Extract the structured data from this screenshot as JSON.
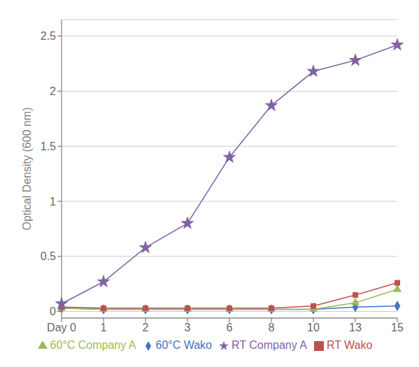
{
  "chart_data": {
    "type": "line",
    "categories": [
      "Day 0",
      "1",
      "2",
      "3",
      "6",
      "8",
      "10",
      "13",
      "15"
    ],
    "series": [
      {
        "name": "60°C Wako",
        "color": "#4472C4",
        "marker": "diamond",
        "values": [
          0.03,
          0.02,
          0.02,
          0.02,
          0.02,
          0.02,
          0.02,
          0.04,
          0.05
        ]
      },
      {
        "name": "60°C Company A",
        "color": "#9BBB59",
        "marker": "triangle",
        "values": [
          0.03,
          0.02,
          0.02,
          0.02,
          0.02,
          0.02,
          0.02,
          0.08,
          0.2
        ]
      },
      {
        "name": "RT Wako",
        "color": "#C0504D",
        "marker": "square",
        "values": [
          0.04,
          0.03,
          0.03,
          0.03,
          0.03,
          0.03,
          0.05,
          0.15,
          0.26
        ]
      },
      {
        "name": "RT Company A",
        "color": "#8064A2",
        "marker": "star",
        "values": [
          0.07,
          0.27,
          0.58,
          0.8,
          1.4,
          1.87,
          2.18,
          2.28,
          2.42
        ]
      }
    ],
    "ylabel": "Optical Density (600 nm)",
    "ylim": [
      -0.06,
      2.65
    ],
    "yticks": [
      0,
      0.5,
      1,
      1.5,
      2,
      2.5
    ],
    "grid": true,
    "legend": "bottom"
  }
}
